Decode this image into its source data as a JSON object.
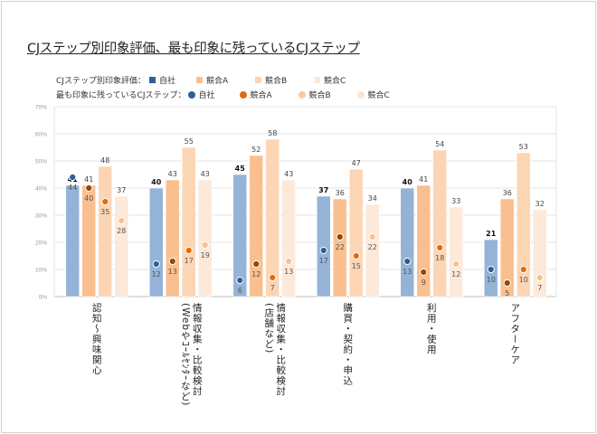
{
  "title": "CJステップ別印象評価、最も印象に残っているCJステップ",
  "legend": {
    "row1_label": "CJステップ別印象評価：",
    "row2_label": "最も印象に残っているCJステップ：",
    "items": [
      "自社",
      "競合A",
      "競合B",
      "競合C"
    ],
    "bar_colors": [
      "#2f5f96",
      "#f9bf8f",
      "#fbd5b5",
      "#fde9d9"
    ],
    "dot_colors": [
      "#2f5f96",
      "#e36c0a",
      "#f9c9a1",
      "#fde3d0"
    ]
  },
  "chart_data": {
    "type": "bar+scatter",
    "title": "",
    "categories": [
      [
        "認知～興味関心"
      ],
      [
        "情報収集・比較検討",
        "(Webやｺｰﾙｾﾝﾀｰなど)"
      ],
      [
        "情報収集・比較検討",
        "(店舗など)"
      ],
      [
        "購買・契約・申込"
      ],
      [
        "利用・使用"
      ],
      [
        "アフターケア"
      ]
    ],
    "ylim": [
      0,
      70
    ],
    "yticks": [
      "0%",
      "10%",
      "20%",
      "30%",
      "40%",
      "50%",
      "60%",
      "70%"
    ],
    "grid": true,
    "legend_position": "top",
    "bar_series": [
      {
        "name": "自社",
        "color": "#95b3d7",
        "values": [
          41,
          40,
          45,
          37,
          40,
          21
        ]
      },
      {
        "name": "競合A",
        "color": "#f9bf8f",
        "values": [
          41,
          43,
          52,
          36,
          41,
          36
        ]
      },
      {
        "name": "競合B",
        "color": "#fcd5b4",
        "values": [
          48,
          55,
          58,
          47,
          54,
          53
        ]
      },
      {
        "name": "競合C",
        "color": "#fde9d9",
        "values": [
          37,
          43,
          43,
          34,
          33,
          32
        ]
      }
    ],
    "dot_series": [
      {
        "name": "自社",
        "color": "#2f5f96",
        "values": [
          44,
          12,
          6,
          17,
          13,
          10
        ]
      },
      {
        "name": "競合A",
        "color": "#974706",
        "values": [
          40,
          13,
          12,
          22,
          9,
          5
        ]
      },
      {
        "name": "競合B",
        "color": "#e36c0a",
        "values": [
          35,
          17,
          7,
          15,
          18,
          10
        ]
      },
      {
        "name": "競合C",
        "color": "#fac090",
        "values": [
          28,
          19,
          13,
          22,
          12,
          7
        ]
      }
    ]
  }
}
